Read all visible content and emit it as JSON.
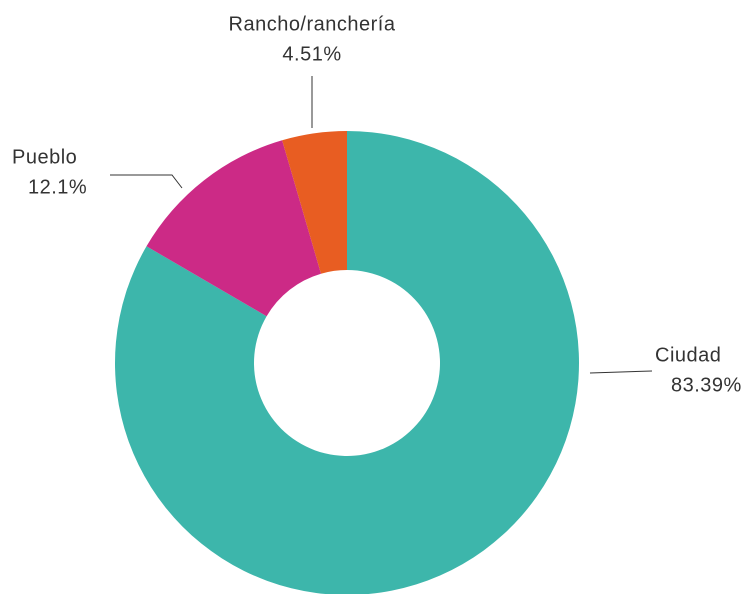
{
  "chart_data": {
    "type": "donut",
    "categories": [
      "Ciudad",
      "Pueblo",
      "Rancho/ranchería"
    ],
    "values": [
      83.39,
      12.1,
      4.51
    ],
    "value_labels": [
      "83.39%",
      "12.1%",
      "4.51%"
    ],
    "colors": [
      "#3db6ab",
      "#cc2a86",
      "#e85d22"
    ]
  }
}
